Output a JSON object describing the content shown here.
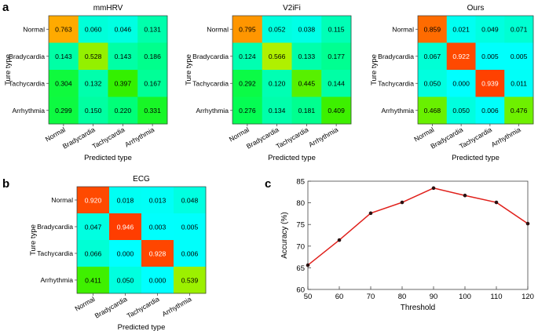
{
  "panel_labels": {
    "a": "a",
    "b": "b",
    "c": "c"
  },
  "colors": {
    "line": "#e0201b",
    "marker": "#2a1010",
    "colormap": [
      [
        0.0,
        "#00ffff"
      ],
      [
        0.125,
        "#00ffb0"
      ],
      [
        0.26,
        "#00ff60"
      ],
      [
        0.38,
        "#28f000"
      ],
      [
        0.5,
        "#80f000"
      ],
      [
        0.6,
        "#c8f000"
      ],
      [
        0.7,
        "#ffd000"
      ],
      [
        0.78,
        "#ffa000"
      ],
      [
        0.86,
        "#ff6a00"
      ],
      [
        0.94,
        "#ff4000"
      ],
      [
        1.0,
        "#ff2000"
      ]
    ]
  },
  "chart_data": [
    {
      "id": "mmhrv",
      "type": "heatmap",
      "title": "mmHRV",
      "xlabel": "Predicted type",
      "ylabel": "Ture type",
      "rows": [
        "Normal",
        "Bradycardia",
        "Tachycardia",
        "Arrhythmia"
      ],
      "cols": [
        "Normal",
        "Bradycardia",
        "Tachycardia",
        "Arrhythmia"
      ],
      "values": [
        [
          0.763,
          0.06,
          0.046,
          0.131
        ],
        [
          0.143,
          0.528,
          0.143,
          0.186
        ],
        [
          0.304,
          0.132,
          0.397,
          0.167
        ],
        [
          0.299,
          0.15,
          0.22,
          0.331
        ]
      ],
      "labels": [
        [
          "0.763",
          "0.060",
          "0.046",
          "0.131"
        ],
        [
          "0.143",
          "0.528",
          "0.143",
          "0.186"
        ],
        [
          "0.304",
          "0.132",
          "0.397",
          "0.167"
        ],
        [
          "0.299",
          "0.150",
          "0.220",
          "0.331"
        ]
      ]
    },
    {
      "id": "v2ifi",
      "type": "heatmap",
      "title": "V2iFi",
      "xlabel": "Predicted type",
      "ylabel": "Ture type",
      "rows": [
        "Normal",
        "Bradycardia",
        "Tachycardia",
        "Arrhythmia"
      ],
      "cols": [
        "Normal",
        "Bradycardia",
        "Tachycardia",
        "Arrhythmia"
      ],
      "values": [
        [
          0.795,
          0.052,
          0.038,
          0.115
        ],
        [
          0.124,
          0.566,
          0.133,
          0.177
        ],
        [
          0.292,
          0.12,
          0.445,
          0.144
        ],
        [
          0.276,
          0.134,
          0.181,
          0.409
        ]
      ],
      "labels": [
        [
          "0.795",
          "0.052",
          "0.038",
          "0.115"
        ],
        [
          "0.124",
          "0.566",
          "0.133",
          "0.177"
        ],
        [
          "0.292",
          "0.120",
          "0.445",
          "0.144"
        ],
        [
          "0.276",
          "0.134",
          "0.181",
          "0.409"
        ]
      ]
    },
    {
      "id": "ours",
      "type": "heatmap",
      "title": "Ours",
      "xlabel": "Predicted type",
      "ylabel": "Ture type",
      "rows": [
        "Normal",
        "Bradycardia",
        "Tachycardia",
        "Arrhythmia"
      ],
      "cols": [
        "Normal",
        "Bradycardia",
        "Tachycardia",
        "Arrhythmia"
      ],
      "values": [
        [
          0.859,
          0.021,
          0.049,
          0.071
        ],
        [
          0.067,
          0.922,
          0.005,
          0.005
        ],
        [
          0.05,
          0.0,
          0.939,
          0.011
        ],
        [
          0.468,
          0.05,
          0.006,
          0.476
        ]
      ],
      "labels": [
        [
          "0.859",
          "0.021",
          "0.049",
          "0.071"
        ],
        [
          "0.067",
          "0.922",
          "0.005",
          "0.005"
        ],
        [
          "0.050",
          "0.000",
          "0.939",
          "0.011"
        ],
        [
          "0.468",
          "0.050",
          "0.006",
          "0.476"
        ]
      ]
    },
    {
      "id": "ecg",
      "type": "heatmap",
      "title": "ECG",
      "xlabel": "Predicted type",
      "ylabel": "Ture type",
      "rows": [
        "Normal",
        "Bradycardia",
        "Tachycardia",
        "Arrhythmia"
      ],
      "cols": [
        "Normal",
        "Bradycardia",
        "Tachycardia",
        "Arrhythmia"
      ],
      "values": [
        [
          0.92,
          0.018,
          0.013,
          0.048
        ],
        [
          0.047,
          0.946,
          0.003,
          0.005
        ],
        [
          0.066,
          0.0,
          0.928,
          0.006
        ],
        [
          0.411,
          0.05,
          0.0,
          0.539
        ]
      ],
      "labels": [
        [
          "0.920",
          "0.018",
          "0.013",
          "0.048"
        ],
        [
          "0.047",
          "0.946",
          "0.003",
          "0.005"
        ],
        [
          "0.066",
          "0.000",
          "0.928",
          "0.006"
        ],
        [
          "0.411",
          "0.050",
          "0.000",
          "0.539"
        ]
      ]
    },
    {
      "id": "accuracy",
      "type": "line",
      "title": "",
      "xlabel": "Threshold",
      "ylabel": "Accuracy (%)",
      "x": [
        50,
        60,
        70,
        80,
        90,
        100,
        110,
        120
      ],
      "y": [
        65.6,
        71.4,
        77.6,
        80.1,
        83.4,
        81.7,
        80.1,
        75.2
      ],
      "xlim": [
        50,
        120
      ],
      "ylim": [
        60,
        85
      ],
      "xticks": [
        "50",
        "60",
        "70",
        "80",
        "90",
        "100",
        "110",
        "120"
      ],
      "yticks": [
        "60",
        "65",
        "70",
        "75",
        "80",
        "85"
      ],
      "grid": false
    }
  ]
}
